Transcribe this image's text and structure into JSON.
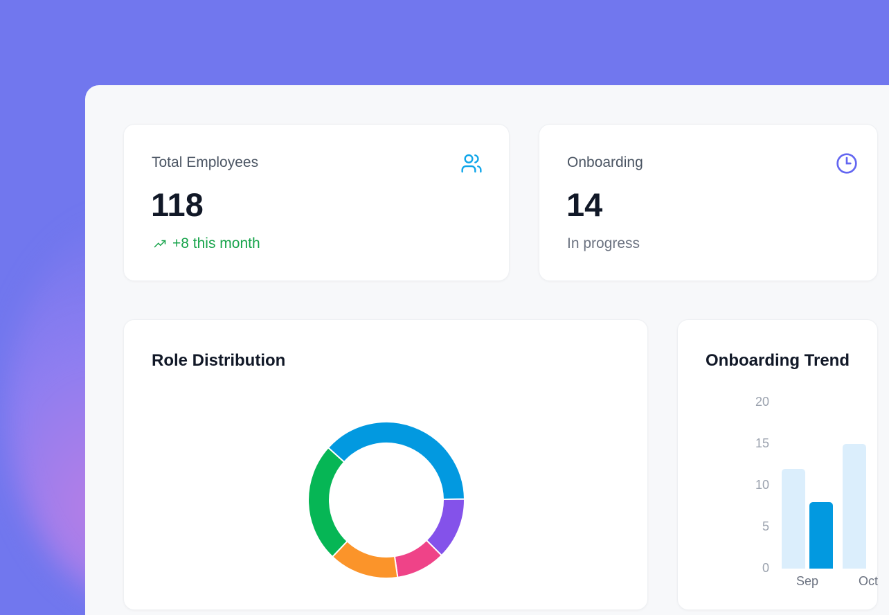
{
  "stats": [
    {
      "label": "Total Employees",
      "value": "118",
      "sub": "+8 this month",
      "sub_icon": "trending-up-icon",
      "icon": "users-icon",
      "icon_color": "#0ea5e9",
      "sub_color": "#16a34a"
    },
    {
      "label": "Onboarding",
      "value": "14",
      "sub": "In progress",
      "icon": "clock-icon",
      "icon_color": "#6366f1"
    }
  ],
  "charts": {
    "role_distribution": {
      "title": "Role Distribution"
    },
    "onboarding_trend": {
      "title": "Onboarding Trend"
    }
  },
  "chart_data": [
    {
      "type": "pie",
      "variant": "doughnut",
      "title": "Role Distribution",
      "values": [
        45,
        15,
        12,
        17,
        29
      ],
      "colors": [
        "#0299e0",
        "#8452ea",
        "#ef4388",
        "#fb942a",
        "#06b655"
      ]
    },
    {
      "type": "bar",
      "title": "Onboarding Trend",
      "categories": [
        "Sep",
        "Oct"
      ],
      "series": [
        {
          "values": [
            12,
            15
          ],
          "color": "#dbeefc"
        },
        {
          "values": [
            8,
            null
          ],
          "color": "#0299e0"
        }
      ],
      "yticks": [
        "0",
        "5",
        "10",
        "15",
        "20"
      ],
      "ylim": [
        0,
        20
      ]
    }
  ]
}
